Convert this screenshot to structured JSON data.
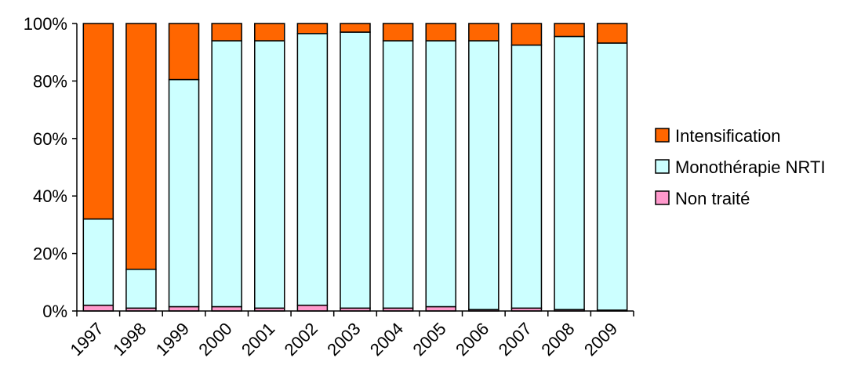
{
  "chart_data": {
    "type": "bar",
    "stacked": true,
    "percent_stacked": true,
    "categories": [
      "1997",
      "1998",
      "1999",
      "2000",
      "2001",
      "2002",
      "2003",
      "2004",
      "2005",
      "2006",
      "2007",
      "2008",
      "2009"
    ],
    "series": [
      {
        "name": "Non traité",
        "color": "#ff99cc",
        "values": [
          2,
          1,
          1.5,
          1.5,
          1,
          2,
          1,
          1,
          1.5,
          0.5,
          1,
          0.5,
          0.3
        ]
      },
      {
        "name": "Monothérapie NRTI",
        "color": "#ccffff",
        "values": [
          30,
          13.5,
          79,
          92.5,
          93,
          94.5,
          96,
          93,
          92.5,
          93.5,
          91.5,
          95,
          92.9
        ]
      },
      {
        "name": "Intensification",
        "color": "#ff6600",
        "values": [
          68,
          85.5,
          19.5,
          6,
          6,
          3.5,
          3,
          6,
          6,
          6,
          7.5,
          4.5,
          6.8
        ]
      }
    ],
    "y_ticks": [
      "0%",
      "20%",
      "40%",
      "60%",
      "80%",
      "100%"
    ],
    "ylim": [
      0,
      100
    ],
    "legend_order": [
      "Intensification",
      "Monothérapie NRTI",
      "Non traité"
    ],
    "legend_position": "right",
    "grid": false,
    "title": "",
    "xlabel": "",
    "ylabel": ""
  }
}
